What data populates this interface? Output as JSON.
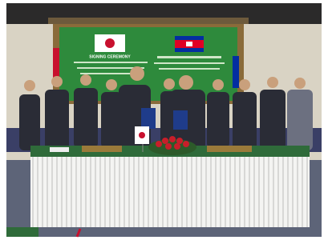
{
  "banner": {
    "title": "SIGNING CEREMONY"
  }
}
